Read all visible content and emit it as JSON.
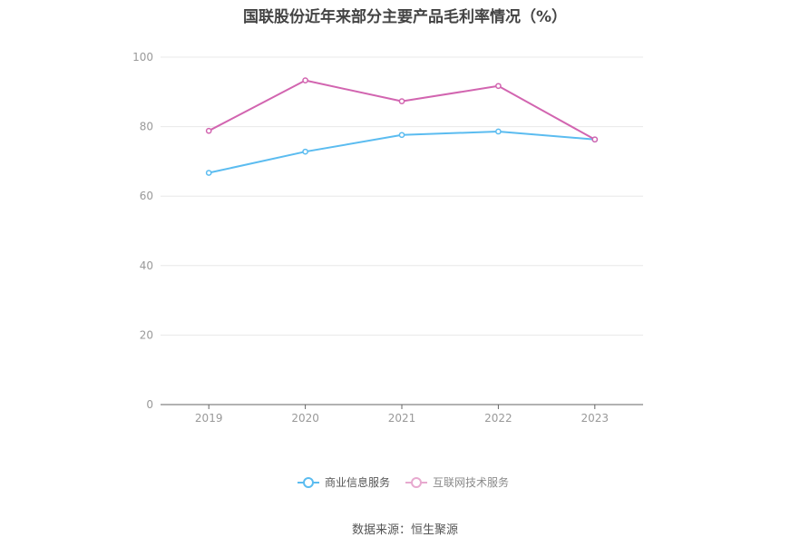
{
  "chart_data": {
    "type": "line",
    "title": "国联股份近年来部分主要产品毛利率情况（%）",
    "categories": [
      "2019",
      "2020",
      "2021",
      "2022",
      "2023"
    ],
    "series": [
      {
        "name": "商业信息服务",
        "color": "#5bbcf0",
        "values": [
          66.7,
          72.8,
          77.6,
          78.6,
          76.3
        ]
      },
      {
        "name": "互联网技术服务",
        "color": "#d265b0",
        "values": [
          78.8,
          93.3,
          87.3,
          91.7,
          76.3
        ]
      }
    ],
    "yticks": [
      0,
      20,
      40,
      60,
      80,
      100
    ],
    "ylim": [
      0,
      100
    ],
    "grid": true,
    "legend": "bottom-center"
  },
  "footer": {
    "source": "数据来源：恒生聚源"
  }
}
